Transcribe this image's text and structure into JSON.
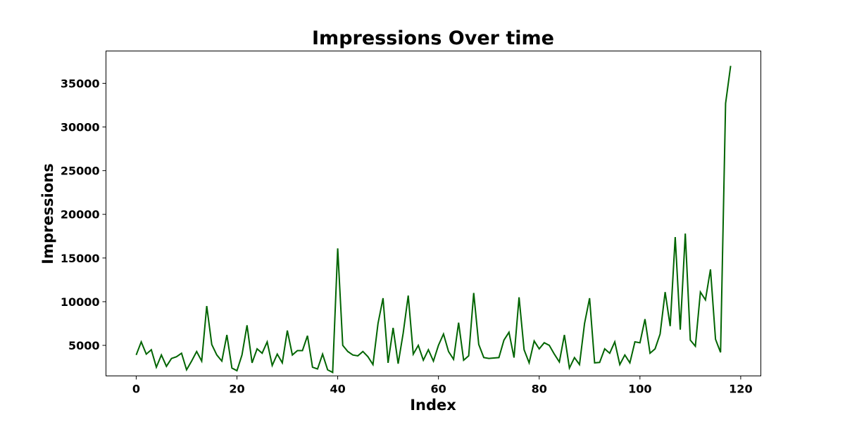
{
  "chart_data": {
    "type": "line",
    "title": "Impressions Over time",
    "xlabel": "Index",
    "ylabel": "Impressions",
    "xlim": [
      -6,
      124
    ],
    "ylim": [
      1500,
      38700
    ],
    "xticks": [
      0,
      20,
      40,
      60,
      80,
      100,
      120
    ],
    "yticks": [
      5000,
      10000,
      15000,
      20000,
      25000,
      30000,
      35000
    ],
    "grid": false,
    "color": "#006400",
    "series": [
      {
        "x": [
          0,
          1,
          2,
          3,
          4,
          5,
          6,
          7,
          8,
          9,
          10,
          11,
          12,
          13,
          14,
          15,
          16,
          17,
          18,
          19,
          20,
          21,
          22,
          23,
          24,
          25,
          26,
          27,
          28,
          29,
          30,
          31,
          32,
          33,
          34,
          35,
          36,
          37,
          38,
          39,
          40,
          41,
          42,
          43,
          44,
          45,
          46,
          47,
          48,
          49,
          50,
          51,
          52,
          53,
          54,
          55,
          56,
          57,
          58,
          59,
          60,
          61,
          62,
          63,
          64,
          65,
          66,
          67,
          68,
          69,
          70,
          71,
          72,
          73,
          74,
          75,
          76,
          77,
          78,
          79,
          80,
          81,
          82,
          83,
          84,
          85,
          86,
          87,
          88,
          89,
          90,
          91,
          92,
          93,
          94,
          95,
          96,
          97,
          98,
          99,
          100,
          101,
          102,
          103,
          104,
          105,
          106,
          107,
          108,
          109,
          110,
          111,
          112,
          113,
          114,
          115,
          116,
          117,
          118
        ],
        "values": [
          3900,
          5400,
          4000,
          4500,
          2500,
          3900,
          2600,
          3500,
          3700,
          4100,
          2200,
          3200,
          4300,
          3200,
          9500,
          5100,
          3900,
          3200,
          6200,
          2400,
          2100,
          3900,
          7300,
          3000,
          4600,
          4100,
          5400,
          2700,
          4000,
          3000,
          6700,
          3900,
          4400,
          4400,
          6100,
          2500,
          2300,
          4000,
          2200,
          1900,
          16100,
          5000,
          4300,
          3900,
          3800,
          4300,
          3700,
          2800,
          7500,
          10400,
          3000,
          7000,
          2900,
          6400,
          10700,
          4000,
          5000,
          3300,
          4500,
          3200,
          5000,
          6300,
          4300,
          3400,
          7600,
          3300,
          3800,
          11000,
          5100,
          3600,
          3500,
          3550,
          3600,
          5600,
          6500,
          3600,
          10500,
          4500,
          3000,
          5500,
          4600,
          5300,
          5000,
          4000,
          3100,
          6200,
          2400,
          3600,
          2800,
          7500,
          10400,
          3000,
          3050,
          4600,
          4100,
          5400,
          2800,
          3900,
          3000,
          5400,
          5300,
          8000,
          4100,
          4600,
          6300,
          11100,
          7200,
          17400,
          6800,
          17800,
          5600,
          4900,
          11100,
          10200,
          13700,
          5700,
          4200,
          32700,
          37000
        ]
      }
    ]
  }
}
